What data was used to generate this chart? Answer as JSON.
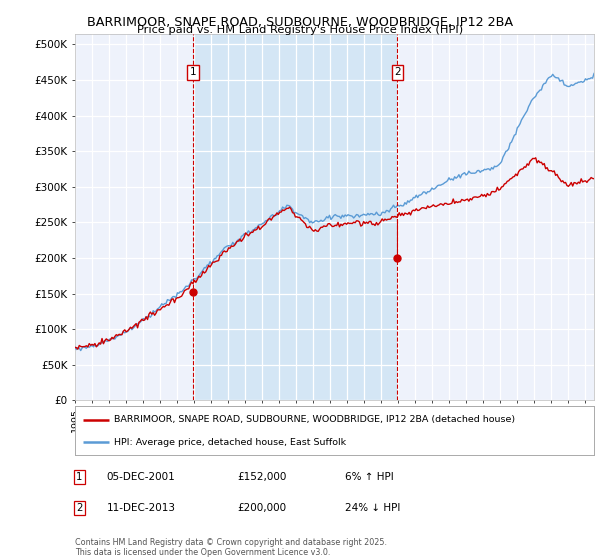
{
  "title": "BARRIMOOR, SNAPE ROAD, SUDBOURNE, WOODBRIDGE, IP12 2BA",
  "subtitle": "Price paid vs. HM Land Registry's House Price Index (HPI)",
  "yticks": [
    0,
    50000,
    100000,
    150000,
    200000,
    250000,
    300000,
    350000,
    400000,
    450000,
    500000
  ],
  "ytick_labels": [
    "£0",
    "£50K",
    "£100K",
    "£150K",
    "£200K",
    "£250K",
    "£300K",
    "£350K",
    "£400K",
    "£450K",
    "£500K"
  ],
  "ylim": [
    0,
    515000
  ],
  "xlim_start": 1995.0,
  "xlim_end": 2025.5,
  "hpi_color": "#5b9bd5",
  "hpi_fill_color": "#d0e4f5",
  "price_color": "#cc0000",
  "marker1_x": 2001.92,
  "marker1_y": 152000,
  "marker1_label": "1",
  "marker2_x": 2013.95,
  "marker2_y": 200000,
  "marker2_label": "2",
  "legend_line1": "BARRIMOOR, SNAPE ROAD, SUDBOURNE, WOODBRIDGE, IP12 2BA (detached house)",
  "legend_line2": "HPI: Average price, detached house, East Suffolk",
  "table_row1": [
    "1",
    "05-DEC-2001",
    "£152,000",
    "6% ↑ HPI"
  ],
  "table_row2": [
    "2",
    "11-DEC-2013",
    "£200,000",
    "24% ↓ HPI"
  ],
  "footer": "Contains HM Land Registry data © Crown copyright and database right 2025.\nThis data is licensed under the Open Government Licence v3.0.",
  "bg_color": "#ffffff",
  "plot_bg_color": "#eef2fb",
  "grid_color": "#ffffff",
  "shade_color": "#d0e4f5"
}
